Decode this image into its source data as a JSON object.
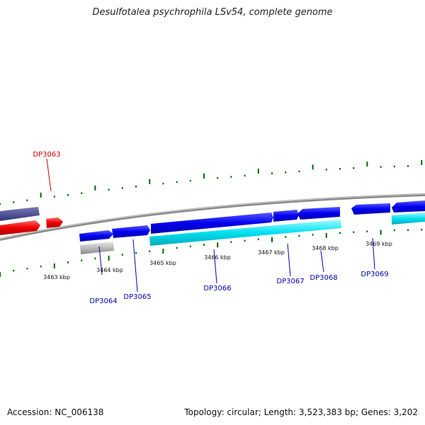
{
  "title": "Desulfotalea psychrophila LSv54, complete genome",
  "footer": {
    "accession": "Accession: NC_006138",
    "topology": "Topology: circular; Length: 3,523,383 bp; Genes: 3,202"
  },
  "colors": {
    "backbone": "#888888",
    "forward_cds": "#0000ee",
    "reverse_cds": "#ee0000",
    "other_feature": "#555599",
    "rna": "#00e0f0",
    "pseudo": "#bbbbbb",
    "ticks": "#006600",
    "label_forward": "#0000aa",
    "label_reverse": "#cc0000"
  },
  "tick_labels": [
    "3463 kbp",
    "3464 kbp",
    "3465 kbp",
    "3466 kbp",
    "3467 kbp",
    "3468 kbp",
    "3469 kbp"
  ],
  "gene_labels": [
    "DP3063",
    "DP3064",
    "DP3065",
    "DP3066",
    "DP3067",
    "DP3068",
    "DP3069"
  ]
}
